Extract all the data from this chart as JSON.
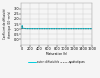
{
  "title": "",
  "xlabel": "Maturation (h)",
  "ylabel": "Coefficient de diffusivité\nthermique (10⁻⁷m²/s)",
  "legend1": "autor: diffusivités",
  "legend2": "quadratiques",
  "xlim": [
    0,
    1600
  ],
  "ylim": [
    -0.5,
    3.5
  ],
  "yticks": [
    0.0,
    0.5,
    1.0,
    1.5,
    2.0,
    2.5,
    3.0
  ],
  "xticks": [
    0,
    200,
    400,
    600,
    800,
    1000,
    1200,
    1400,
    1600
  ],
  "line1_x": [
    0,
    5,
    8,
    10,
    12,
    15,
    18,
    22,
    30,
    50,
    100,
    200,
    400,
    600,
    800,
    1000,
    1200,
    1400,
    1600
  ],
  "line1_y": [
    1.05,
    1.05,
    1.06,
    1.08,
    1.18,
    1.35,
    1.25,
    1.15,
    1.1,
    1.08,
    1.05,
    1.05,
    1.05,
    1.05,
    1.05,
    1.05,
    1.05,
    1.05,
    1.05
  ],
  "line2_x": [
    0,
    5,
    8,
    10,
    12,
    15,
    18,
    22,
    30,
    50,
    100,
    200,
    400,
    600,
    800,
    1000,
    1200,
    1400,
    1600
  ],
  "line2_y": [
    1.02,
    1.02,
    1.03,
    1.05,
    1.15,
    1.3,
    1.22,
    1.12,
    1.08,
    1.06,
    1.04,
    1.03,
    1.03,
    1.03,
    1.03,
    1.03,
    1.03,
    1.03,
    1.03
  ],
  "line1_color": "#00ccdd",
  "line2_color": "#555555",
  "grid_color": "#cccccc",
  "bg_color": "#f5f5f5"
}
